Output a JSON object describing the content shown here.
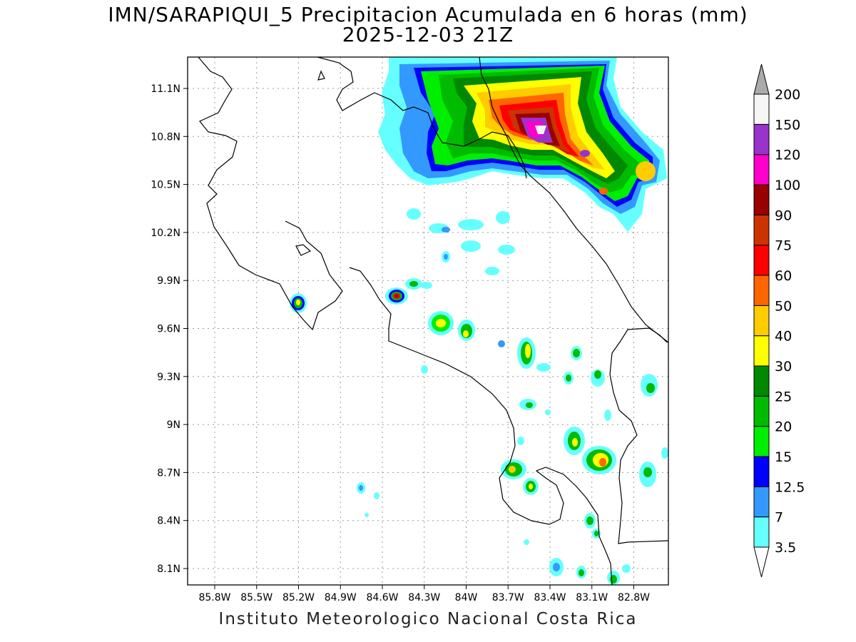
{
  "title": {
    "line1": "IMN/SARAPIQUI_5 Precipitacion Acumulada en 6 horas (mm)",
    "line2": "2025-12-03 21Z"
  },
  "credit": "Instituto Meteorologico Nacional Costa Rica",
  "axes": {
    "x_ticks": [
      "85.8W",
      "85.5W",
      "85.2W",
      "84.9W",
      "84.6W",
      "84.3W",
      "84W",
      "83.7W",
      "83.4W",
      "83.1W",
      "82.8W"
    ],
    "y_ticks": [
      "11.1N",
      "10.8N",
      "10.5N",
      "10.2N",
      "9.9N",
      "9.6N",
      "9.3N",
      "9N",
      "8.7N",
      "8.4N",
      "8.1N"
    ],
    "grid": true
  },
  "legend": {
    "labels": [
      "3.5",
      "7",
      "12.5",
      "15",
      "20",
      "25",
      "30",
      "40",
      "50",
      "60",
      "75",
      "90",
      "100",
      "120",
      "150",
      "200"
    ],
    "colors": [
      "#66ffff",
      "#3399ff",
      "#0000ff",
      "#00ee00",
      "#00bb00",
      "#008800",
      "#ffff00",
      "#ffcc00",
      "#ff6600",
      "#ff0000",
      "#cc3300",
      "#990000",
      "#ff00cc",
      "#9933cc",
      "#f5f5f5",
      "#aaaaaa"
    ]
  }
}
